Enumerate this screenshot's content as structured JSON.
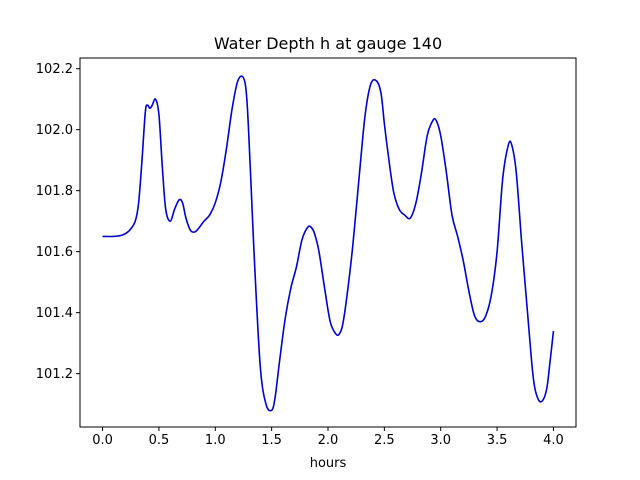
{
  "chart_data": {
    "type": "line",
    "title": "Water Depth h at gauge 140",
    "xlabel": "hours",
    "ylabel": "",
    "xlim": [
      -0.2,
      4.2
    ],
    "ylim": [
      101.025,
      102.235
    ],
    "xticks": [
      0.0,
      0.5,
      1.0,
      1.5,
      2.0,
      2.5,
      3.0,
      3.5,
      4.0
    ],
    "xtick_labels": [
      "0.0",
      "0.5",
      "1.0",
      "1.5",
      "2.0",
      "2.5",
      "3.0",
      "3.5",
      "4.0"
    ],
    "yticks": [
      101.2,
      101.4,
      101.6,
      101.8,
      102.0,
      102.2
    ],
    "ytick_labels": [
      "101.2",
      "101.4",
      "101.6",
      "101.8",
      "102.0",
      "102.2"
    ],
    "grid": false,
    "legend": "none",
    "series": [
      {
        "color": "#0000cc",
        "x": [
          0.0,
          0.1,
          0.18,
          0.24,
          0.29,
          0.32,
          0.35,
          0.38,
          0.4,
          0.42,
          0.44,
          0.47,
          0.5,
          0.53,
          0.56,
          0.6,
          0.64,
          0.68,
          0.71,
          0.74,
          0.78,
          0.82,
          0.86,
          0.9,
          0.95,
          1.0,
          1.05,
          1.1,
          1.15,
          1.2,
          1.25,
          1.28,
          1.31,
          1.35,
          1.4,
          1.45,
          1.5,
          1.53,
          1.57,
          1.62,
          1.67,
          1.72,
          1.77,
          1.82,
          1.85,
          1.88,
          1.92,
          1.97,
          2.02,
          2.07,
          2.1,
          2.13,
          2.17,
          2.22,
          2.28,
          2.33,
          2.38,
          2.43,
          2.47,
          2.5,
          2.53,
          2.58,
          2.63,
          2.68,
          2.73,
          2.78,
          2.83,
          2.88,
          2.93,
          2.96,
          3.0,
          3.05,
          3.1,
          3.15,
          3.2,
          3.25,
          3.3,
          3.35,
          3.4,
          3.45,
          3.5,
          3.55,
          3.6,
          3.63,
          3.67,
          3.72,
          3.77,
          3.82,
          3.86,
          3.9,
          3.94,
          3.97,
          4.0
        ],
        "y": [
          101.65,
          101.65,
          101.655,
          101.67,
          101.7,
          101.76,
          101.9,
          102.06,
          102.08,
          102.07,
          102.08,
          102.1,
          102.05,
          101.88,
          101.74,
          101.7,
          101.74,
          101.77,
          101.76,
          101.71,
          101.67,
          101.665,
          101.68,
          101.7,
          101.72,
          101.76,
          101.83,
          101.94,
          102.07,
          102.16,
          102.17,
          102.1,
          101.88,
          101.55,
          101.22,
          101.1,
          101.08,
          101.12,
          101.24,
          101.38,
          101.48,
          101.55,
          101.64,
          101.68,
          101.68,
          101.66,
          101.6,
          101.48,
          101.37,
          101.33,
          101.33,
          101.36,
          101.46,
          101.62,
          101.86,
          102.05,
          102.15,
          102.16,
          102.12,
          102.02,
          101.93,
          101.8,
          101.74,
          101.72,
          101.71,
          101.76,
          101.86,
          101.98,
          102.03,
          102.03,
          101.98,
          101.86,
          101.72,
          101.65,
          101.57,
          101.47,
          101.39,
          101.37,
          101.39,
          101.46,
          101.6,
          101.84,
          101.95,
          101.95,
          101.86,
          101.62,
          101.4,
          101.19,
          101.12,
          101.11,
          101.15,
          101.24,
          101.34
        ]
      }
    ]
  }
}
